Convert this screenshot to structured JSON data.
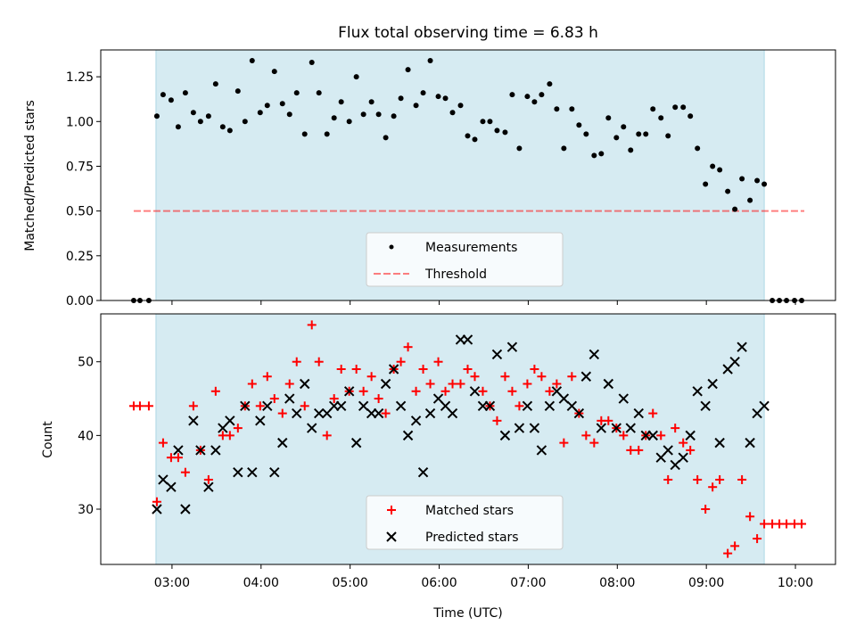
{
  "chart_data": [
    {
      "type": "scatter",
      "title": "Flux total observing time = 6.83 h",
      "ylabel": "Matched/Predicted stars",
      "xlabel": "",
      "x_unit": "hours UTC",
      "xlim": [
        2.2,
        10.45
      ],
      "ylim": [
        0.0,
        1.4
      ],
      "yticks": [
        0.0,
        0.25,
        0.5,
        0.75,
        1.0,
        1.25
      ],
      "ytick_labels": [
        "0.00",
        "0.25",
        "0.50",
        "0.75",
        "1.00",
        "1.25"
      ],
      "observing_window": [
        2.82,
        9.65
      ],
      "legend": [
        "Measurements",
        "Threshold"
      ],
      "legend_loc": "lower center",
      "threshold": {
        "name": "Threshold",
        "value": 0.5,
        "x_range": [
          2.57,
          10.1
        ]
      },
      "series": [
        {
          "name": "Measurements",
          "x": [
            2.57,
            2.64,
            2.74,
            2.83,
            2.9,
            2.99,
            3.07,
            3.15,
            3.24,
            3.32,
            3.41,
            3.49,
            3.57,
            3.65,
            3.74,
            3.82,
            3.9,
            3.99,
            4.07,
            4.15,
            4.24,
            4.32,
            4.4,
            4.49,
            4.57,
            4.65,
            4.74,
            4.82,
            4.9,
            4.99,
            5.07,
            5.15,
            5.24,
            5.32,
            5.4,
            5.49,
            5.57,
            5.65,
            5.74,
            5.82,
            5.9,
            5.99,
            6.07,
            6.15,
            6.24,
            6.32,
            6.4,
            6.49,
            6.57,
            6.65,
            6.74,
            6.82,
            6.9,
            6.99,
            7.07,
            7.15,
            7.24,
            7.32,
            7.4,
            7.49,
            7.57,
            7.65,
            7.74,
            7.82,
            7.9,
            7.99,
            8.07,
            8.15,
            8.24,
            8.32,
            8.4,
            8.49,
            8.57,
            8.65,
            8.74,
            8.82,
            8.9,
            8.99,
            9.07,
            9.15,
            9.24,
            9.32,
            9.4,
            9.49,
            9.57,
            9.65,
            9.74,
            9.82,
            9.9,
            9.99,
            10.07
          ],
          "y": [
            0.0,
            0.0,
            0.0,
            1.03,
            1.15,
            1.12,
            0.97,
            1.16,
            1.05,
            1.0,
            1.03,
            1.21,
            0.97,
            0.95,
            1.17,
            1.0,
            1.34,
            1.05,
            1.09,
            1.28,
            1.1,
            1.04,
            1.16,
            0.93,
            1.33,
            1.16,
            0.93,
            1.02,
            1.11,
            1.0,
            1.25,
            1.04,
            1.11,
            1.04,
            0.91,
            1.03,
            1.13,
            1.29,
            1.09,
            1.16,
            1.34,
            1.14,
            1.13,
            1.05,
            1.09,
            0.92,
            0.9,
            1.0,
            1.0,
            0.95,
            0.94,
            1.15,
            0.85,
            1.14,
            1.11,
            1.15,
            1.21,
            1.07,
            0.85,
            1.07,
            0.98,
            0.93,
            0.81,
            0.82,
            1.02,
            0.91,
            0.97,
            0.84,
            0.93,
            0.93,
            1.07,
            1.02,
            0.92,
            1.08,
            1.08,
            1.03,
            0.85,
            0.65,
            0.75,
            0.73,
            0.61,
            0.51,
            0.68,
            0.56,
            0.67,
            0.65,
            0.0,
            0.0,
            0.0,
            0.0,
            0.0
          ]
        }
      ]
    },
    {
      "type": "scatter",
      "title": "",
      "ylabel": "Count",
      "xlabel": "Time (UTC)",
      "x_unit": "hours UTC",
      "xlim": [
        2.2,
        10.45
      ],
      "ylim": [
        22.5,
        56.5
      ],
      "yticks": [
        30,
        40,
        50
      ],
      "ytick_labels": [
        "30",
        "40",
        "50"
      ],
      "xticks": [
        3,
        4,
        5,
        6,
        7,
        8,
        9,
        10
      ],
      "xtick_labels": [
        "03:00",
        "04:00",
        "05:00",
        "06:00",
        "07:00",
        "08:00",
        "09:00",
        "10:00"
      ],
      "observing_window": [
        2.82,
        9.65
      ],
      "legend": [
        "Matched stars",
        "Predicted stars"
      ],
      "legend_loc": "lower center",
      "series": [
        {
          "name": "Matched stars",
          "marker": "plus",
          "color": "#ff0000",
          "x": [
            2.57,
            2.64,
            2.74,
            2.83,
            2.9,
            2.99,
            3.07,
            3.15,
            3.24,
            3.32,
            3.41,
            3.49,
            3.57,
            3.65,
            3.74,
            3.82,
            3.9,
            3.99,
            4.07,
            4.15,
            4.24,
            4.32,
            4.4,
            4.49,
            4.57,
            4.65,
            4.74,
            4.82,
            4.9,
            4.99,
            5.07,
            5.15,
            5.24,
            5.32,
            5.4,
            5.49,
            5.57,
            5.65,
            5.74,
            5.82,
            5.9,
            5.99,
            6.07,
            6.15,
            6.24,
            6.32,
            6.4,
            6.49,
            6.57,
            6.65,
            6.74,
            6.82,
            6.9,
            6.99,
            7.07,
            7.15,
            7.24,
            7.32,
            7.4,
            7.49,
            7.57,
            7.65,
            7.74,
            7.82,
            7.9,
            7.99,
            8.07,
            8.15,
            8.24,
            8.32,
            8.4,
            8.49,
            8.57,
            8.65,
            8.74,
            8.82,
            8.9,
            8.99,
            9.07,
            9.15,
            9.24,
            9.32,
            9.4,
            9.49,
            9.57,
            9.65,
            9.74,
            9.82,
            9.9,
            9.99,
            10.07
          ],
          "y": [
            44,
            44,
            44,
            31,
            39,
            37,
            37,
            35,
            44,
            38,
            34,
            46,
            40,
            40,
            41,
            44,
            47,
            44,
            48,
            45,
            43,
            47,
            50,
            44,
            55,
            50,
            40,
            45,
            49,
            46,
            49,
            46,
            48,
            45,
            43,
            49,
            50,
            52,
            46,
            49,
            47,
            50,
            46,
            47,
            47,
            49,
            48,
            46,
            44,
            42,
            48,
            46,
            44,
            47,
            49,
            48,
            46,
            47,
            39,
            48,
            43,
            40,
            39,
            42,
            42,
            41,
            40,
            38,
            38,
            40,
            43,
            40,
            34,
            41,
            39,
            38,
            34,
            30,
            33,
            34,
            24,
            25,
            34,
            29,
            26,
            28,
            28,
            28,
            28,
            28,
            28
          ]
        },
        {
          "name": "Predicted stars",
          "marker": "x",
          "color": "#000000",
          "x": [
            2.83,
            2.9,
            2.99,
            3.07,
            3.15,
            3.24,
            3.32,
            3.41,
            3.49,
            3.57,
            3.65,
            3.74,
            3.82,
            3.9,
            3.99,
            4.07,
            4.15,
            4.24,
            4.32,
            4.4,
            4.49,
            4.57,
            4.65,
            4.74,
            4.82,
            4.9,
            4.99,
            5.07,
            5.15,
            5.24,
            5.32,
            5.4,
            5.49,
            5.57,
            5.65,
            5.74,
            5.82,
            5.9,
            5.99,
            6.07,
            6.15,
            6.24,
            6.32,
            6.4,
            6.49,
            6.57,
            6.65,
            6.74,
            6.82,
            6.9,
            6.99,
            7.07,
            7.15,
            7.24,
            7.32,
            7.4,
            7.49,
            7.57,
            7.65,
            7.74,
            7.82,
            7.9,
            7.99,
            8.07,
            8.15,
            8.24,
            8.32,
            8.4,
            8.49,
            8.57,
            8.65,
            8.74,
            8.82,
            8.9,
            8.99,
            9.07,
            9.15,
            9.24,
            9.32,
            9.4,
            9.49,
            9.57,
            9.65
          ],
          "y": [
            30,
            34,
            33,
            38,
            30,
            42,
            38,
            33,
            38,
            41,
            42,
            35,
            44,
            35,
            42,
            44,
            35,
            39,
            45,
            43,
            47,
            41,
            43,
            43,
            44,
            44,
            46,
            39,
            44,
            43,
            43,
            47,
            49,
            44,
            40,
            42,
            35,
            43,
            45,
            44,
            43,
            53,
            53,
            46,
            44,
            44,
            51,
            40,
            52,
            41,
            44,
            41,
            38,
            44,
            46,
            45,
            44,
            43,
            48,
            51,
            41,
            47,
            41,
            45,
            41,
            43,
            40,
            40,
            37,
            38,
            36,
            37,
            40,
            46,
            44,
            47,
            39,
            49,
            50,
            52,
            39,
            43,
            44
          ]
        }
      ]
    }
  ]
}
